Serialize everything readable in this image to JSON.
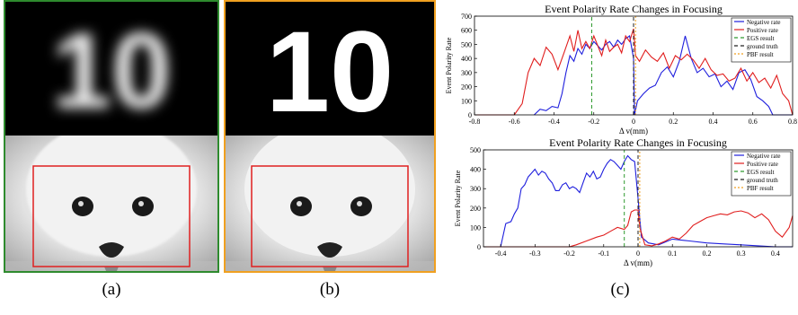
{
  "panel_a": {
    "label": "(a)",
    "top_text": "10",
    "bottom_kind": "seal-photo",
    "frame_color": "#2e8b2e",
    "roi_color": "#e02020"
  },
  "panel_b": {
    "label": "(b)",
    "top_text": "10",
    "bottom_kind": "seal-photo",
    "frame_color": "#f0a020",
    "roi_color": "#e02020"
  },
  "panel_c": {
    "label": "(c)"
  },
  "chart_data": [
    {
      "type": "line",
      "title": "Event Polarity Rate Changes in Focusing",
      "xlabel": "Δ v(mm)",
      "ylabel": "Event Polarity Rate",
      "xlim": [
        -0.8,
        0.8
      ],
      "ylim": [
        0,
        700
      ],
      "xticks": [
        "-0.8",
        "-0.6",
        "-0.4",
        "-0.2",
        "0",
        "0.2",
        "0.4",
        "0.6",
        "0.8"
      ],
      "yticks": [
        "0",
        "100",
        "200",
        "300",
        "400",
        "500",
        "600",
        "700"
      ],
      "legend_position": "top-right",
      "series": [
        {
          "name": "Negative rate",
          "color": "#1f1fdd",
          "x": [
            -0.5,
            -0.47,
            -0.44,
            -0.41,
            -0.38,
            -0.36,
            -0.34,
            -0.32,
            -0.3,
            -0.28,
            -0.26,
            -0.24,
            -0.22,
            -0.2,
            -0.18,
            -0.16,
            -0.14,
            -0.12,
            -0.1,
            -0.08,
            -0.06,
            -0.04,
            -0.02,
            0.0,
            0.005,
            0.02,
            0.05,
            0.08,
            0.11,
            0.14,
            0.17,
            0.2,
            0.23,
            0.26,
            0.29,
            0.32,
            0.35,
            0.38,
            0.41,
            0.44,
            0.47,
            0.5,
            0.53,
            0.56,
            0.59,
            0.62,
            0.65,
            0.68,
            0.7,
            0.75,
            0.8
          ],
          "y": [
            0,
            40,
            30,
            60,
            50,
            150,
            300,
            420,
            380,
            470,
            430,
            500,
            470,
            520,
            490,
            460,
            500,
            520,
            480,
            530,
            500,
            540,
            560,
            400,
            0,
            100,
            150,
            190,
            210,
            300,
            340,
            270,
            380,
            560,
            400,
            300,
            330,
            270,
            290,
            200,
            240,
            180,
            300,
            320,
            250,
            130,
            100,
            60,
            0,
            0,
            0
          ]
        },
        {
          "name": "Positive rate",
          "color": "#e01e1e",
          "x": [
            -0.8,
            -0.6,
            -0.56,
            -0.53,
            -0.5,
            -0.47,
            -0.44,
            -0.41,
            -0.38,
            -0.35,
            -0.32,
            -0.3,
            -0.28,
            -0.26,
            -0.24,
            -0.22,
            -0.2,
            -0.18,
            -0.16,
            -0.14,
            -0.12,
            -0.1,
            -0.08,
            -0.06,
            -0.04,
            -0.02,
            0.0,
            0.01,
            0.03,
            0.06,
            0.09,
            0.12,
            0.15,
            0.18,
            0.21,
            0.24,
            0.27,
            0.3,
            0.33,
            0.36,
            0.39,
            0.42,
            0.45,
            0.48,
            0.51,
            0.54,
            0.57,
            0.6,
            0.63,
            0.66,
            0.69,
            0.72,
            0.75,
            0.78,
            0.8
          ],
          "y": [
            0,
            0,
            80,
            300,
            400,
            350,
            480,
            430,
            320,
            440,
            560,
            450,
            600,
            470,
            520,
            470,
            560,
            490,
            420,
            530,
            450,
            480,
            500,
            440,
            560,
            520,
            610,
            420,
            380,
            460,
            410,
            380,
            440,
            330,
            420,
            390,
            430,
            390,
            330,
            400,
            320,
            280,
            290,
            240,
            260,
            330,
            240,
            300,
            230,
            260,
            190,
            280,
            150,
            100,
            0
          ]
        },
        {
          "name": "EGS result",
          "color": "#2e9a2e",
          "dash": "4,3",
          "x": [
            -0.21,
            -0.21
          ],
          "y": [
            0,
            700
          ]
        },
        {
          "name": "ground truth",
          "color": "#202020",
          "dash": "4,3",
          "x": [
            0.0,
            0.0
          ],
          "y": [
            0,
            700
          ]
        },
        {
          "name": "PBF result",
          "color": "#f0a020",
          "dash": "2,2",
          "x": [
            0.01,
            0.01
          ],
          "y": [
            0,
            700
          ]
        }
      ]
    },
    {
      "type": "line",
      "title": "Event Polarity Rate Changes in Focusing",
      "xlabel": "Δ v(mm)",
      "ylabel": "Event Polarity Rate",
      "xlim": [
        -0.45,
        0.45
      ],
      "ylim": [
        0,
        500
      ],
      "xticks": [
        "-0.4",
        "-0.3",
        "-0.2",
        "-0.1",
        "0",
        "0.1",
        "0.2",
        "0.3",
        "0.4"
      ],
      "yticks": [
        "0",
        "100",
        "200",
        "300",
        "400",
        "500"
      ],
      "legend_position": "top-right",
      "series": [
        {
          "name": "Negative rate",
          "color": "#1f1fdd",
          "x": [
            -0.45,
            -0.4,
            -0.385,
            -0.37,
            -0.36,
            -0.35,
            -0.34,
            -0.33,
            -0.32,
            -0.31,
            -0.3,
            -0.29,
            -0.28,
            -0.27,
            -0.26,
            -0.25,
            -0.24,
            -0.23,
            -0.22,
            -0.21,
            -0.2,
            -0.19,
            -0.18,
            -0.17,
            -0.16,
            -0.15,
            -0.14,
            -0.13,
            -0.12,
            -0.11,
            -0.1,
            -0.09,
            -0.08,
            -0.07,
            -0.06,
            -0.05,
            -0.04,
            -0.03,
            -0.02,
            -0.01,
            0.0,
            0.01,
            0.03,
            0.06,
            0.1,
            0.15,
            0.2,
            0.25,
            0.3,
            0.35,
            0.4,
            0.45
          ],
          "y": [
            0,
            0,
            120,
            130,
            170,
            200,
            300,
            320,
            360,
            380,
            400,
            370,
            390,
            380,
            350,
            330,
            290,
            290,
            320,
            330,
            300,
            310,
            300,
            280,
            330,
            380,
            360,
            390,
            350,
            360,
            400,
            430,
            450,
            440,
            420,
            400,
            440,
            470,
            450,
            440,
            250,
            50,
            20,
            10,
            40,
            30,
            20,
            15,
            10,
            5,
            0,
            0
          ]
        },
        {
          "name": "Positive rate",
          "color": "#e01e1e",
          "x": [
            -0.45,
            -0.2,
            -0.18,
            -0.15,
            -0.12,
            -0.1,
            -0.08,
            -0.06,
            -0.04,
            -0.03,
            -0.02,
            -0.01,
            0.0,
            0.005,
            0.02,
            0.04,
            0.06,
            0.08,
            0.1,
            0.12,
            0.14,
            0.16,
            0.18,
            0.2,
            0.22,
            0.24,
            0.26,
            0.28,
            0.3,
            0.32,
            0.34,
            0.36,
            0.38,
            0.4,
            0.42,
            0.44,
            0.45
          ],
          "y": [
            0,
            0,
            10,
            30,
            50,
            60,
            80,
            100,
            90,
            110,
            180,
            190,
            190,
            100,
            10,
            5,
            15,
            30,
            50,
            40,
            70,
            110,
            130,
            150,
            160,
            170,
            165,
            180,
            185,
            175,
            150,
            170,
            140,
            80,
            50,
            100,
            160
          ]
        },
        {
          "name": "EGS result",
          "color": "#2e9a2e",
          "dash": "4,3",
          "x": [
            -0.04,
            -0.04
          ],
          "y": [
            0,
            500
          ]
        },
        {
          "name": "ground truth",
          "color": "#202020",
          "dash": "4,3",
          "x": [
            0.0,
            0.0
          ],
          "y": [
            0,
            500
          ]
        },
        {
          "name": "PBF result",
          "color": "#f0a020",
          "dash": "2,2",
          "x": [
            0.005,
            0.005
          ],
          "y": [
            0,
            500
          ]
        }
      ]
    }
  ]
}
